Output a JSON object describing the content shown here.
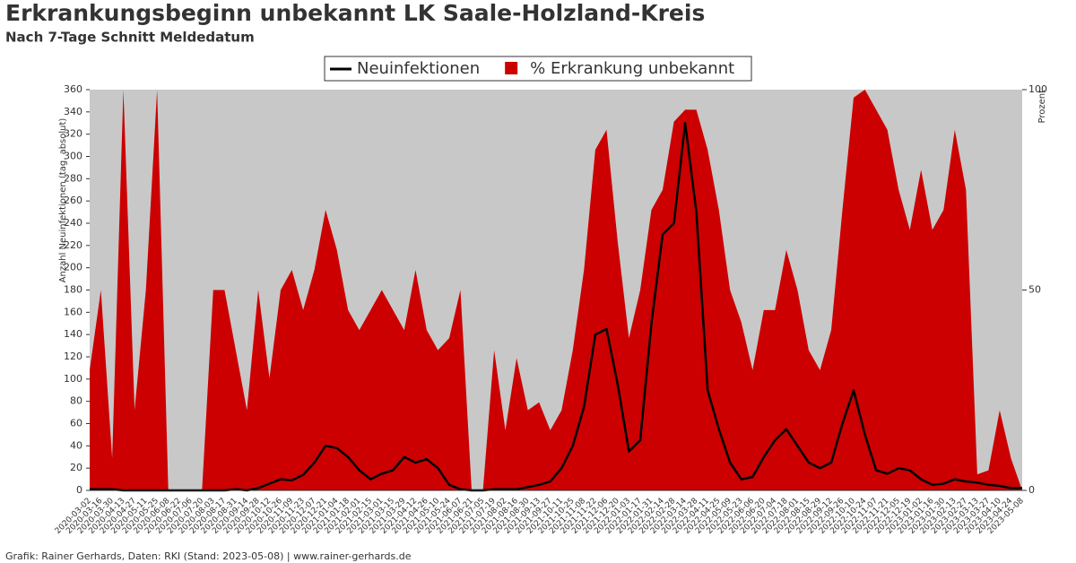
{
  "chart_data": {
    "type": "line",
    "title": "Erkrankungsbeginn unbekannt LK Saale-Holzland-Kreis",
    "subtitle": "Nach 7-Tage Schnitt Meldedatum",
    "ylabel": "Anzahl Neuinfektionen (tag. absolut)",
    "y2label": "Prozent",
    "footer": "Grafik: Rainer Gerhards, Daten: RKI (Stand: 2023-05-08) | www.rainer-gerhards.de",
    "legend": "top",
    "background": "#c8c8c8",
    "categories": [
      "2020-03-02",
      "2020-03-16",
      "2020-03-30",
      "2020-04-13",
      "2020-04-27",
      "2020-05-11",
      "2020-05-25",
      "2020-06-08",
      "2020-06-22",
      "2020-07-06",
      "2020-07-20",
      "2020-08-03",
      "2020-08-17",
      "2020-08-31",
      "2020-09-14",
      "2020-09-28",
      "2020-10-12",
      "2020-10-26",
      "2020-11-09",
      "2020-11-23",
      "2020-12-07",
      "2020-12-21",
      "2021-01-04",
      "2021-01-18",
      "2021-02-01",
      "2021-02-15",
      "2021-03-01",
      "2021-03-15",
      "2021-03-29",
      "2021-04-12",
      "2021-04-26",
      "2021-05-10",
      "2021-05-24",
      "2021-06-07",
      "2021-06-21",
      "2021-07-05",
      "2021-07-19",
      "2021-08-02",
      "2021-08-16",
      "2021-08-30",
      "2021-09-13",
      "2021-09-27",
      "2021-10-11",
      "2021-10-25",
      "2021-11-08",
      "2021-11-22",
      "2021-12-06",
      "2021-12-20",
      "2022-01-03",
      "2022-01-17",
      "2022-01-31",
      "2022-02-14",
      "2022-02-28",
      "2022-03-14",
      "2022-03-28",
      "2022-04-11",
      "2022-04-25",
      "2022-05-09",
      "2022-05-23",
      "2022-06-06",
      "2022-06-20",
      "2022-07-04",
      "2022-07-18",
      "2022-08-01",
      "2022-08-15",
      "2022-08-29",
      "2022-09-12",
      "2022-09-26",
      "2022-10-10",
      "2022-10-24",
      "2022-11-07",
      "2022-11-21",
      "2022-12-05",
      "2022-12-19",
      "2023-01-02",
      "2023-01-16",
      "2023-01-30",
      "2023-02-13",
      "2023-02-27",
      "2023-03-13",
      "2023-03-27",
      "2023-04-10",
      "2023-04-24",
      "2023-05-08"
    ],
    "series": [
      {
        "name": "% Erkrankung unbekannt",
        "color": "#cc0000",
        "axis": "y2",
        "kind": "area",
        "values": [
          30,
          50,
          8,
          100,
          20,
          50,
          100,
          0,
          0,
          0,
          0,
          50,
          50,
          35,
          20,
          50,
          28,
          50,
          55,
          45,
          55,
          70,
          60,
          45,
          40,
          45,
          50,
          45,
          40,
          55,
          40,
          35,
          38,
          50,
          0,
          0,
          35,
          15,
          33,
          20,
          22,
          15,
          20,
          35,
          55,
          85,
          90,
          62,
          38,
          50,
          70,
          75,
          92,
          95,
          95,
          85,
          70,
          50,
          42,
          30,
          45,
          45,
          60,
          50,
          35,
          30,
          40,
          70,
          98,
          100,
          95,
          90,
          75,
          65,
          80,
          65,
          70,
          90,
          75,
          4,
          5,
          20,
          8,
          0
        ]
      },
      {
        "name": "Neuinfektionen",
        "color": "#000000",
        "kind": "line",
        "values": [
          1,
          1,
          1,
          0,
          0,
          0,
          0,
          0,
          0,
          0,
          0,
          0,
          0,
          1,
          0,
          2,
          6,
          10,
          9,
          14,
          25,
          40,
          38,
          30,
          18,
          10,
          15,
          18,
          30,
          25,
          28,
          20,
          5,
          1,
          0,
          0,
          1,
          1,
          1,
          3,
          5,
          8,
          20,
          40,
          75,
          140,
          145,
          95,
          35,
          45,
          150,
          230,
          240,
          330,
          250,
          90,
          55,
          25,
          10,
          12,
          30,
          45,
          55,
          40,
          25,
          20,
          25,
          60,
          90,
          50,
          18,
          15,
          20,
          18,
          10,
          5,
          6,
          10,
          8,
          7,
          5,
          4,
          2,
          2
        ]
      }
    ],
    "ylim": [
      0,
      360
    ],
    "yticks": [
      0,
      20,
      40,
      60,
      80,
      100,
      120,
      140,
      160,
      180,
      200,
      220,
      240,
      260,
      280,
      300,
      320,
      340,
      360
    ],
    "y2lim": [
      0,
      100
    ],
    "y2ticks": [
      0,
      50,
      100
    ]
  }
}
